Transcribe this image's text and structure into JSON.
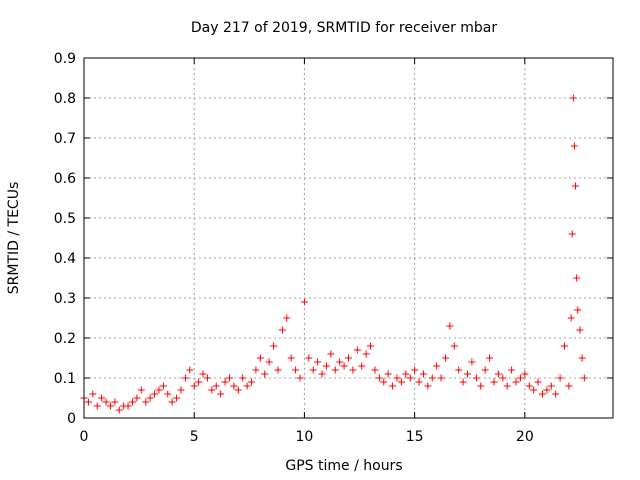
{
  "chart_data": {
    "type": "scatter",
    "title": "Day 217 of 2019, SRMTID for receiver mbar",
    "xlabel": "GPS time / hours",
    "ylabel": "SRMTID / TECUs",
    "xlim": [
      0,
      24
    ],
    "ylim": [
      0,
      0.9
    ],
    "grid": true,
    "marker": "+",
    "color": "#ff0000",
    "x_ticks": [
      0,
      5,
      10,
      15,
      20
    ],
    "x_tick_labels": [
      "0",
      "5",
      "10",
      "15",
      "20"
    ],
    "y_ticks": [
      0,
      0.1,
      0.2,
      0.3,
      0.4,
      0.5,
      0.6,
      0.7,
      0.8,
      0.9
    ],
    "y_tick_labels": [
      "0",
      "0.1",
      "0.2",
      "0.3",
      "0.4",
      "0.5",
      "0.6",
      "0.7",
      "0.8",
      "0.9"
    ],
    "series": [
      {
        "name": "SRMTID",
        "x": [
          0.0,
          0.2,
          0.4,
          0.6,
          0.8,
          1.0,
          1.2,
          1.4,
          1.6,
          1.8,
          2.0,
          2.2,
          2.4,
          2.6,
          2.8,
          3.0,
          3.2,
          3.4,
          3.6,
          3.8,
          4.0,
          4.2,
          4.4,
          4.6,
          4.8,
          5.0,
          5.2,
          5.4,
          5.6,
          5.8,
          6.0,
          6.2,
          6.4,
          6.6,
          6.8,
          7.0,
          7.2,
          7.4,
          7.6,
          7.8,
          8.0,
          8.2,
          8.4,
          8.6,
          8.8,
          9.0,
          9.2,
          9.4,
          9.6,
          9.8,
          10.0,
          10.2,
          10.4,
          10.6,
          10.8,
          11.0,
          11.2,
          11.4,
          11.6,
          11.8,
          12.0,
          12.2,
          12.4,
          12.6,
          12.8,
          13.0,
          13.2,
          13.4,
          13.6,
          13.8,
          14.0,
          14.2,
          14.4,
          14.6,
          14.8,
          15.0,
          15.2,
          15.4,
          15.6,
          15.8,
          16.0,
          16.2,
          16.4,
          16.6,
          16.8,
          17.0,
          17.2,
          17.4,
          17.6,
          17.8,
          18.0,
          18.2,
          18.4,
          18.6,
          18.8,
          19.0,
          19.2,
          19.4,
          19.6,
          19.8,
          20.0,
          20.2,
          20.4,
          20.6,
          20.8,
          21.0,
          21.2,
          21.4,
          21.6,
          21.8,
          22.0,
          22.1,
          22.15,
          22.2,
          22.25,
          22.3,
          22.35,
          22.4,
          22.5,
          22.6,
          22.7
        ],
        "y": [
          0.05,
          0.04,
          0.06,
          0.03,
          0.05,
          0.04,
          0.03,
          0.04,
          0.02,
          0.03,
          0.03,
          0.04,
          0.05,
          0.07,
          0.04,
          0.05,
          0.06,
          0.07,
          0.08,
          0.06,
          0.04,
          0.05,
          0.07,
          0.1,
          0.12,
          0.08,
          0.09,
          0.11,
          0.1,
          0.07,
          0.08,
          0.06,
          0.09,
          0.1,
          0.08,
          0.07,
          0.1,
          0.08,
          0.09,
          0.12,
          0.15,
          0.11,
          0.14,
          0.18,
          0.12,
          0.22,
          0.25,
          0.15,
          0.12,
          0.1,
          0.29,
          0.15,
          0.12,
          0.14,
          0.11,
          0.13,
          0.16,
          0.12,
          0.14,
          0.13,
          0.15,
          0.12,
          0.17,
          0.13,
          0.16,
          0.18,
          0.12,
          0.1,
          0.09,
          0.11,
          0.08,
          0.1,
          0.09,
          0.11,
          0.1,
          0.12,
          0.09,
          0.11,
          0.08,
          0.1,
          0.13,
          0.1,
          0.15,
          0.23,
          0.18,
          0.12,
          0.09,
          0.11,
          0.14,
          0.1,
          0.08,
          0.12,
          0.15,
          0.09,
          0.11,
          0.1,
          0.08,
          0.12,
          0.09,
          0.1,
          0.11,
          0.08,
          0.07,
          0.09,
          0.06,
          0.07,
          0.08,
          0.06,
          0.1,
          0.18,
          0.08,
          0.25,
          0.46,
          0.8,
          0.68,
          0.58,
          0.35,
          0.27,
          0.22,
          0.15,
          0.1
        ]
      }
    ]
  }
}
